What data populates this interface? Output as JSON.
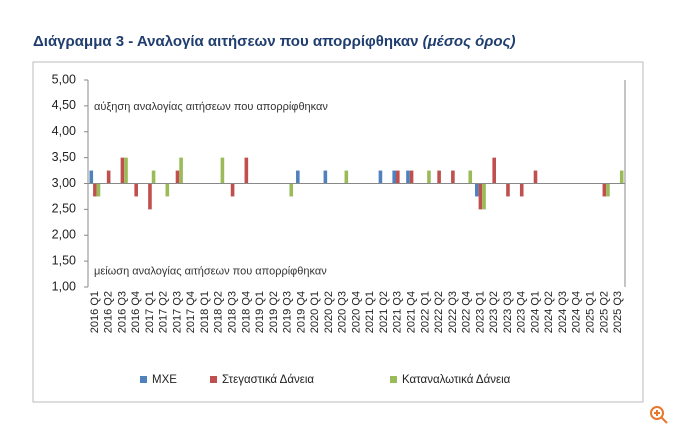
{
  "chart_data": {
    "type": "bar",
    "title": "Διάγραμμα 3 - Αναλογία αιτήσεων που απορρίφθηκαν",
    "subtitle": "(μέσος όρος)",
    "annotations": [
      "αύξηση αναλογίας αιτήσεων που απορρίφθηκαν",
      "μείωση αναλογίας αιτήσεων που απορρίφθηκαν"
    ],
    "categories": [
      "2016 Q1",
      "2016 Q2",
      "2016 Q3",
      "2016 Q4",
      "2017 Q1",
      "2017 Q2",
      "2017 Q3",
      "2017 Q4",
      "2018 Q1",
      "2018 Q2",
      "2018 Q3",
      "2018 Q4",
      "2019 Q1",
      "2019 Q2",
      "2019 Q3",
      "2019 Q4",
      "2020 Q1",
      "2020 Q2",
      "2020 Q3",
      "2020 Q4",
      "2021 Q1",
      "2021 Q2",
      "2021 Q3",
      "2021 Q4",
      "2022 Q1",
      "2022 Q2",
      "2022 Q3",
      "2022 Q4",
      "2023 Q1",
      "2023 Q2",
      "2023 Q3",
      "2023 Q4",
      "2024 Q1",
      "2024 Q2",
      "2024 Q3",
      "2024 Q4",
      "2025 Q1",
      "2025 Q2",
      "2025 Q3"
    ],
    "series": [
      {
        "name": "ΜΧΕ",
        "color": "#4f81bd",
        "values": [
          3.25,
          3,
          3,
          3,
          3,
          3,
          3,
          3,
          3,
          3,
          3,
          3,
          3,
          3,
          3,
          3.25,
          3,
          3.25,
          3,
          3,
          3,
          3.25,
          3.25,
          3.25,
          3,
          3,
          3,
          3,
          2.75,
          3,
          3,
          3,
          3,
          3,
          3,
          3,
          3,
          3,
          3
        ]
      },
      {
        "name": "Στεγαστικά Δάνεια",
        "color": "#c0504d",
        "values": [
          2.75,
          3.25,
          3.5,
          2.75,
          2.5,
          3,
          3.25,
          3,
          3,
          3,
          2.75,
          3.5,
          3,
          3,
          3,
          3,
          3,
          3,
          3,
          3,
          3,
          3,
          3.25,
          3.25,
          3,
          3.25,
          3.25,
          3,
          2.5,
          3.5,
          2.75,
          2.75,
          3.25,
          3,
          3,
          3,
          3,
          2.75,
          3
        ]
      },
      {
        "name": "Καταναλωτικά Δάνεια",
        "color": "#9bbb59",
        "values": [
          2.75,
          3,
          3.5,
          3,
          3.25,
          2.75,
          3.5,
          3,
          3,
          3.5,
          3,
          3,
          3,
          3,
          2.75,
          3,
          3,
          3,
          3.25,
          3,
          3,
          3,
          3,
          3,
          3.25,
          3,
          3,
          3.25,
          2.5,
          3,
          3,
          3,
          3,
          3,
          3,
          3,
          3,
          2.75,
          3.25
        ]
      }
    ],
    "ylim": [
      1,
      5
    ],
    "yticks": [
      {
        "value": 1,
        "label": "1,00"
      },
      {
        "value": 1.5,
        "label": "1,50"
      },
      {
        "value": 2,
        "label": "2,00"
      },
      {
        "value": 2.5,
        "label": "2,50"
      },
      {
        "value": 3,
        "label": "3,00"
      },
      {
        "value": 3.5,
        "label": "3,50"
      },
      {
        "value": 4,
        "label": "4,00"
      },
      {
        "value": 4.5,
        "label": "4,50"
      },
      {
        "value": 5,
        "label": "5,00"
      }
    ],
    "x_axis_crosses": 3,
    "legend": "bottom",
    "grid": false
  }
}
